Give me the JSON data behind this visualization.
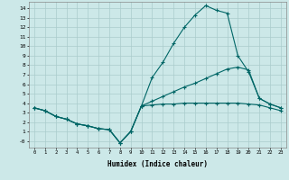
{
  "xlabel": "Humidex (Indice chaleur)",
  "bg_color": "#cce8e8",
  "grid_color": "#aacccc",
  "line_color": "#006666",
  "xlim": [
    -0.5,
    23.5
  ],
  "ylim": [
    -0.7,
    14.7
  ],
  "xticks": [
    0,
    1,
    2,
    3,
    4,
    5,
    6,
    7,
    8,
    9,
    10,
    11,
    12,
    13,
    14,
    15,
    16,
    17,
    18,
    19,
    20,
    21,
    22,
    23
  ],
  "yticks": [
    0,
    1,
    2,
    3,
    4,
    5,
    6,
    7,
    8,
    9,
    10,
    11,
    12,
    13,
    14
  ],
  "ytick_labels": [
    "-0",
    "1",
    "2",
    "3",
    "4",
    "5",
    "6",
    "7",
    "8",
    "9",
    "10",
    "11",
    "12",
    "13",
    "14"
  ],
  "line1_x": [
    0,
    1,
    2,
    3,
    4,
    5,
    6,
    7,
    8,
    9,
    10,
    11,
    12,
    13,
    14,
    15,
    16,
    17,
    18,
    19,
    20,
    21,
    22,
    23
  ],
  "line1_y": [
    3.5,
    3.2,
    2.6,
    2.3,
    1.8,
    1.6,
    1.3,
    1.2,
    -0.2,
    1.0,
    3.7,
    6.7,
    8.3,
    10.3,
    12.0,
    13.3,
    14.3,
    13.8,
    13.5,
    9.0,
    7.3,
    4.5,
    3.9,
    3.5
  ],
  "line2_x": [
    0,
    1,
    2,
    3,
    4,
    5,
    6,
    7,
    8,
    9,
    10,
    11,
    12,
    13,
    14,
    15,
    16,
    17,
    18,
    19,
    20,
    21,
    22,
    23
  ],
  "line2_y": [
    3.5,
    3.2,
    2.6,
    2.3,
    1.8,
    1.6,
    1.3,
    1.2,
    -0.2,
    1.0,
    3.7,
    4.2,
    4.7,
    5.2,
    5.7,
    6.1,
    6.6,
    7.1,
    7.6,
    7.8,
    7.5,
    4.5,
    3.9,
    3.5
  ],
  "line3_x": [
    0,
    1,
    2,
    3,
    4,
    5,
    6,
    7,
    8,
    9,
    10,
    11,
    12,
    13,
    14,
    15,
    16,
    17,
    18,
    19,
    20,
    21,
    22,
    23
  ],
  "line3_y": [
    3.5,
    3.2,
    2.6,
    2.3,
    1.8,
    1.6,
    1.3,
    1.2,
    -0.2,
    1.0,
    3.7,
    3.8,
    3.9,
    3.9,
    4.0,
    4.0,
    4.0,
    4.0,
    4.0,
    4.0,
    3.9,
    3.8,
    3.5,
    3.2
  ]
}
